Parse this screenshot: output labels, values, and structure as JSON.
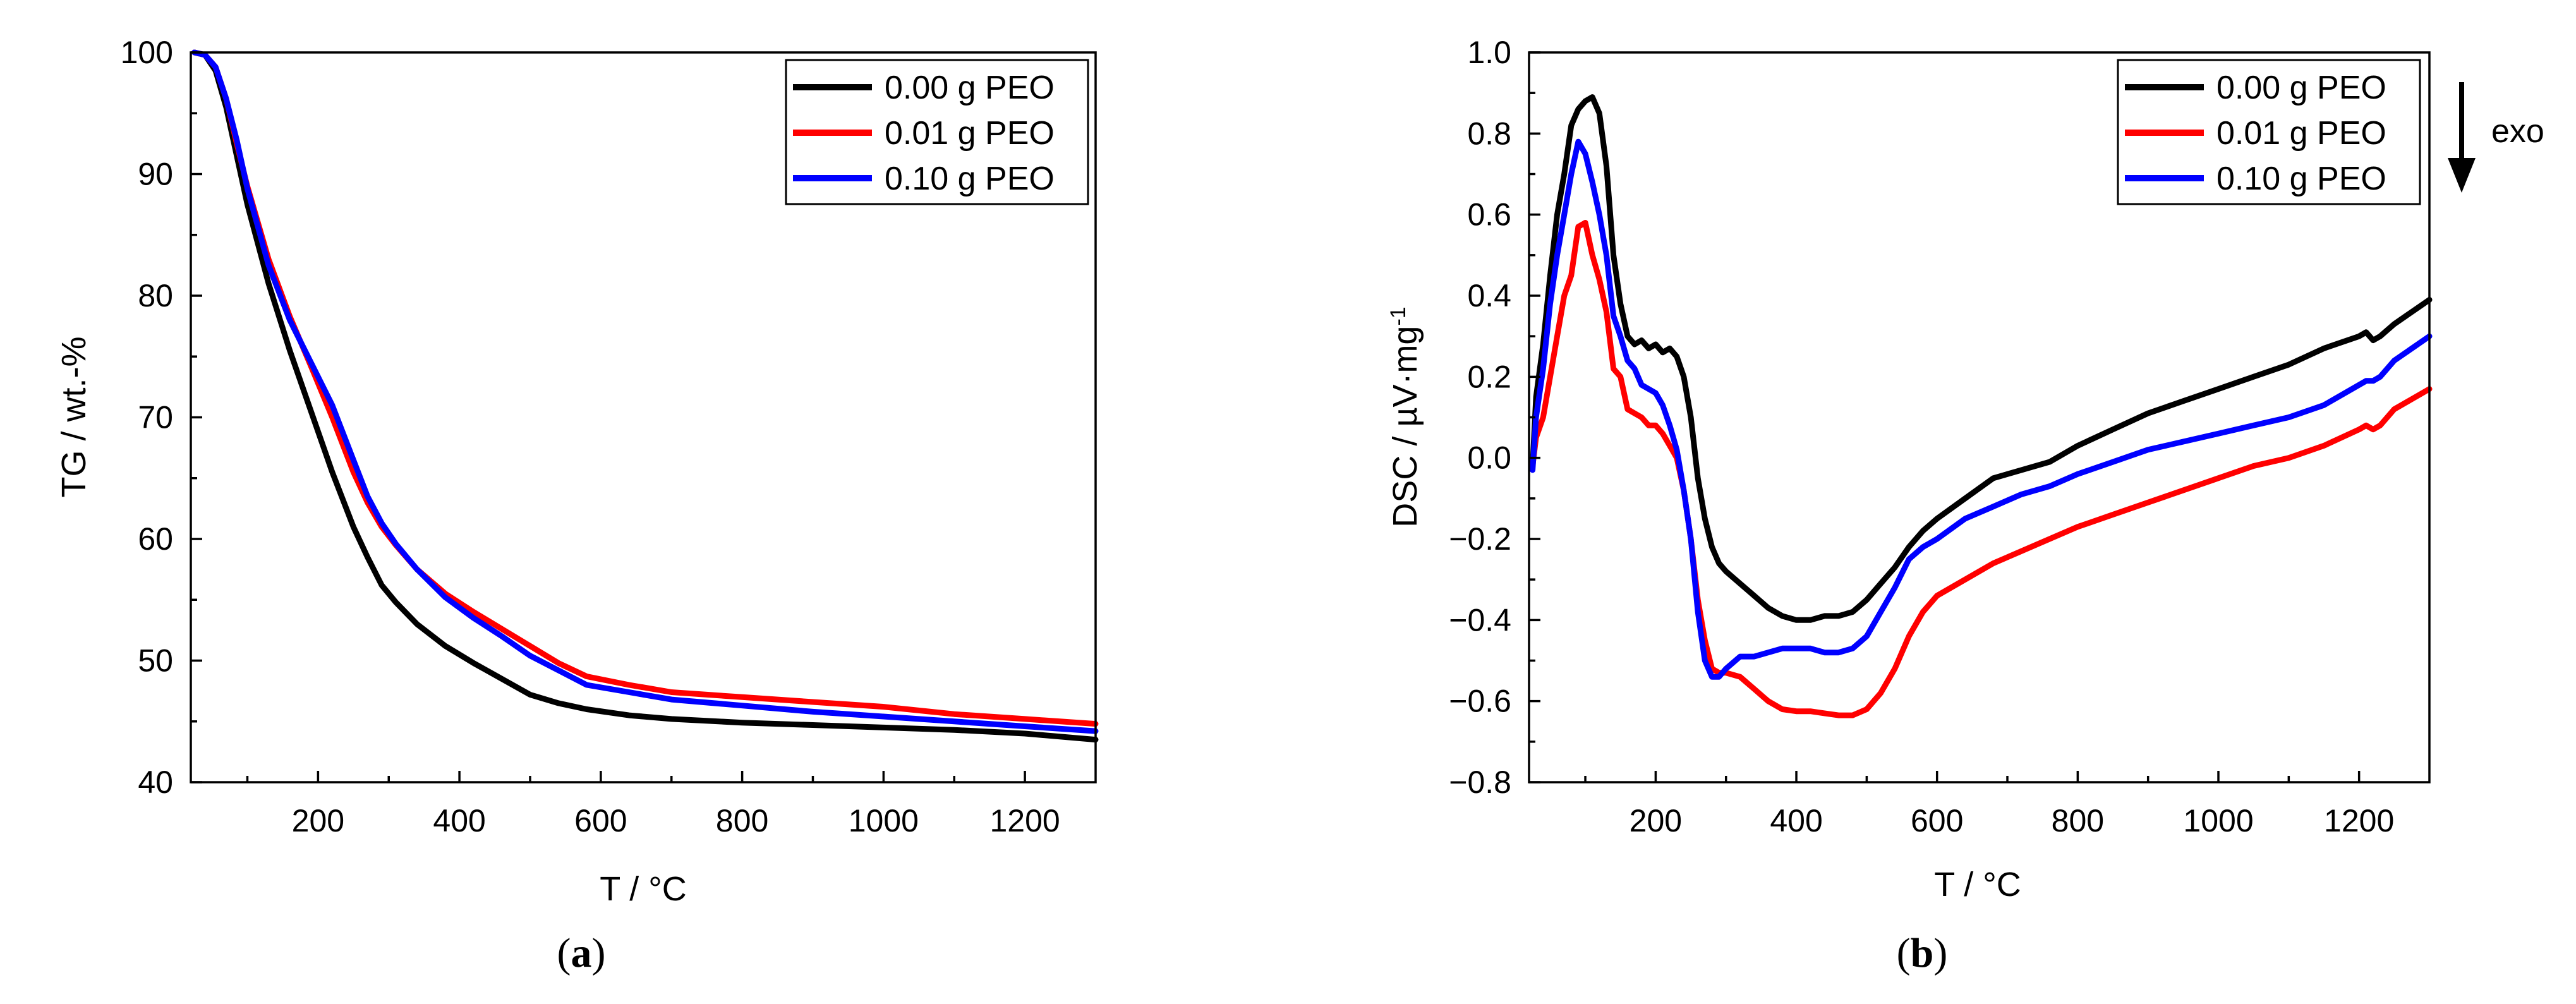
{
  "chart_data": [
    {
      "type": "line",
      "panel": "a",
      "caption": "(a)",
      "caption_parts": [
        "(",
        "a",
        ")"
      ],
      "xlabel": "T / °C",
      "ylabel": "TG / wt.-%",
      "xlim": [
        20,
        1300
      ],
      "ylim": [
        40,
        100
      ],
      "xticks": [
        200,
        400,
        600,
        800,
        1000,
        1200
      ],
      "yticks": [
        40,
        50,
        60,
        70,
        80,
        90,
        100
      ],
      "legend_position": "top-right",
      "series": [
        {
          "name": "0.00 g PEO",
          "color": "#000000",
          "x": [
            25,
            40,
            55,
            70,
            85,
            100,
            130,
            160,
            190,
            220,
            250,
            270,
            290,
            310,
            340,
            380,
            420,
            460,
            500,
            540,
            580,
            640,
            700,
            800,
            900,
            1000,
            1100,
            1200,
            1300
          ],
          "y": [
            100,
            99.8,
            98.5,
            95.5,
            91.5,
            87.5,
            81,
            75.5,
            70.5,
            65.5,
            61,
            58.5,
            56.2,
            54.8,
            53,
            51.2,
            49.8,
            48.5,
            47.2,
            46.5,
            46,
            45.5,
            45.2,
            44.9,
            44.7,
            44.5,
            44.3,
            44,
            43.5
          ]
        },
        {
          "name": "0.01 g PEO",
          "color": "#ff0000",
          "x": [
            25,
            40,
            55,
            70,
            85,
            100,
            130,
            160,
            190,
            220,
            250,
            270,
            290,
            310,
            340,
            380,
            420,
            460,
            500,
            540,
            580,
            640,
            700,
            800,
            900,
            1000,
            1100,
            1200,
            1300
          ],
          "y": [
            100,
            99.8,
            98.8,
            96.2,
            92.5,
            89,
            83,
            78.3,
            74.2,
            70,
            65.5,
            63,
            61,
            59.5,
            57.5,
            55.5,
            54,
            52.6,
            51.2,
            49.8,
            48.7,
            48,
            47.4,
            47,
            46.6,
            46.2,
            45.6,
            45.2,
            44.8
          ]
        },
        {
          "name": "0.10 g PEO",
          "color": "#0000ff",
          "x": [
            25,
            40,
            55,
            70,
            85,
            100,
            130,
            160,
            190,
            220,
            250,
            270,
            290,
            310,
            340,
            380,
            420,
            460,
            500,
            540,
            580,
            640,
            700,
            800,
            900,
            1000,
            1100,
            1200,
            1300
          ],
          "y": [
            100,
            99.8,
            98.8,
            96.2,
            92.8,
            88.8,
            82.5,
            78,
            74.5,
            71,
            66.5,
            63.5,
            61.3,
            59.6,
            57.5,
            55.2,
            53.5,
            52,
            50.4,
            49.2,
            48,
            47.4,
            46.8,
            46.3,
            45.8,
            45.4,
            45,
            44.6,
            44.2
          ]
        }
      ]
    },
    {
      "type": "line",
      "panel": "b",
      "caption": "(b)",
      "caption_parts": [
        "(",
        "b",
        ")"
      ],
      "xlabel": "T / °C",
      "ylabel": "DSC / µV·mg",
      "ylabel_superscript": "-1",
      "xlim": [
        20,
        1300
      ],
      "ylim": [
        -0.8,
        1.0
      ],
      "xticks": [
        200,
        400,
        600,
        800,
        1000,
        1200
      ],
      "yticks": [
        -0.8,
        -0.6,
        -0.4,
        -0.2,
        0.0,
        0.2,
        0.4,
        0.6,
        0.8,
        1.0
      ],
      "ytick_labels": [
        "−0.8",
        "−0.6",
        "−0.4",
        "−0.2",
        "0.0",
        "0.2",
        "0.4",
        "0.6",
        "0.8",
        "1.0"
      ],
      "annotation": "exo",
      "legend_position": "top-right",
      "series": [
        {
          "name": "0.00 g PEO",
          "color": "#000000",
          "x": [
            25,
            30,
            40,
            50,
            60,
            70,
            80,
            90,
            100,
            110,
            120,
            130,
            140,
            150,
            160,
            170,
            180,
            190,
            200,
            210,
            220,
            230,
            240,
            250,
            260,
            270,
            280,
            290,
            300,
            320,
            340,
            360,
            380,
            400,
            420,
            440,
            460,
            480,
            500,
            520,
            540,
            560,
            580,
            600,
            640,
            680,
            720,
            760,
            800,
            850,
            900,
            950,
            1000,
            1050,
            1100,
            1150,
            1200,
            1210,
            1220,
            1230,
            1250,
            1300
          ],
          "y": [
            -0.02,
            0.15,
            0.28,
            0.45,
            0.6,
            0.7,
            0.82,
            0.86,
            0.88,
            0.89,
            0.85,
            0.72,
            0.5,
            0.38,
            0.3,
            0.28,
            0.29,
            0.27,
            0.28,
            0.26,
            0.27,
            0.25,
            0.2,
            0.1,
            -0.05,
            -0.15,
            -0.22,
            -0.26,
            -0.28,
            -0.31,
            -0.34,
            -0.37,
            -0.39,
            -0.4,
            -0.4,
            -0.39,
            -0.39,
            -0.38,
            -0.35,
            -0.31,
            -0.27,
            -0.22,
            -0.18,
            -0.15,
            -0.1,
            -0.05,
            -0.03,
            -0.01,
            0.03,
            0.07,
            0.11,
            0.14,
            0.17,
            0.2,
            0.23,
            0.27,
            0.3,
            0.31,
            0.29,
            0.3,
            0.33,
            0.39
          ]
        },
        {
          "name": "0.01 g PEO",
          "color": "#ff0000",
          "x": [
            25,
            30,
            40,
            50,
            60,
            70,
            80,
            90,
            100,
            110,
            120,
            130,
            140,
            150,
            160,
            170,
            180,
            190,
            200,
            210,
            220,
            230,
            240,
            250,
            260,
            270,
            280,
            290,
            300,
            320,
            340,
            360,
            380,
            400,
            420,
            440,
            460,
            480,
            500,
            520,
            540,
            560,
            580,
            600,
            640,
            680,
            720,
            760,
            800,
            850,
            900,
            950,
            1000,
            1050,
            1100,
            1150,
            1200,
            1210,
            1220,
            1230,
            1250,
            1300
          ],
          "y": [
            -0.02,
            0.05,
            0.1,
            0.2,
            0.3,
            0.4,
            0.45,
            0.57,
            0.58,
            0.5,
            0.44,
            0.36,
            0.22,
            0.2,
            0.12,
            0.11,
            0.1,
            0.08,
            0.08,
            0.06,
            0.03,
            0.0,
            -0.08,
            -0.2,
            -0.35,
            -0.45,
            -0.52,
            -0.53,
            -0.53,
            -0.54,
            -0.57,
            -0.6,
            -0.62,
            -0.625,
            -0.625,
            -0.63,
            -0.635,
            -0.635,
            -0.62,
            -0.58,
            -0.52,
            -0.44,
            -0.38,
            -0.34,
            -0.3,
            -0.26,
            -0.23,
            -0.2,
            -0.17,
            -0.14,
            -0.11,
            -0.08,
            -0.05,
            -0.02,
            0.0,
            0.03,
            0.07,
            0.08,
            0.07,
            0.08,
            0.12,
            0.17
          ]
        },
        {
          "name": "0.10 g PEO",
          "color": "#0000ff",
          "x": [
            25,
            30,
            40,
            50,
            60,
            70,
            80,
            90,
            100,
            110,
            120,
            130,
            140,
            150,
            160,
            170,
            180,
            190,
            200,
            210,
            220,
            230,
            240,
            250,
            260,
            270,
            280,
            290,
            300,
            320,
            340,
            360,
            380,
            400,
            420,
            440,
            460,
            480,
            500,
            520,
            540,
            560,
            580,
            600,
            640,
            680,
            720,
            760,
            800,
            850,
            900,
            950,
            1000,
            1050,
            1100,
            1150,
            1200,
            1210,
            1220,
            1230,
            1250,
            1300
          ],
          "y": [
            -0.03,
            0.1,
            0.22,
            0.38,
            0.5,
            0.6,
            0.7,
            0.78,
            0.75,
            0.68,
            0.6,
            0.5,
            0.35,
            0.3,
            0.24,
            0.22,
            0.18,
            0.17,
            0.16,
            0.13,
            0.08,
            0.02,
            -0.08,
            -0.2,
            -0.38,
            -0.5,
            -0.54,
            -0.54,
            -0.52,
            -0.49,
            -0.49,
            -0.48,
            -0.47,
            -0.47,
            -0.47,
            -0.48,
            -0.48,
            -0.47,
            -0.44,
            -0.38,
            -0.32,
            -0.25,
            -0.22,
            -0.2,
            -0.15,
            -0.12,
            -0.09,
            -0.07,
            -0.04,
            -0.01,
            0.02,
            0.04,
            0.06,
            0.08,
            0.1,
            0.13,
            0.18,
            0.19,
            0.19,
            0.2,
            0.24,
            0.3
          ]
        }
      ]
    }
  ]
}
